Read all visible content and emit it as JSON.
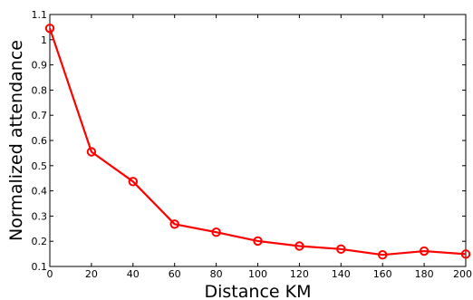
{
  "chart_data": {
    "type": "line",
    "title": "",
    "xlabel": "Distance KM",
    "ylabel": "Normalized attendance",
    "xlim": [
      0,
      200
    ],
    "ylim": [
      0.1,
      1.1
    ],
    "xticks": [
      0,
      20,
      40,
      60,
      80,
      100,
      120,
      140,
      160,
      180,
      200
    ],
    "yticks": [
      0.1,
      0.2,
      0.3,
      0.4,
      0.5,
      0.6,
      0.7,
      0.8,
      0.9,
      1,
      1.1
    ],
    "grid": false,
    "legend": "none",
    "series": [
      {
        "color": "#ff0000",
        "marker": "circle",
        "x": [
          0,
          20,
          40,
          60,
          80,
          100,
          120,
          140,
          160,
          180,
          200
        ],
        "y": [
          1.045,
          0.555,
          0.437,
          0.268,
          0.236,
          0.201,
          0.181,
          0.169,
          0.146,
          0.161,
          0.149
        ]
      }
    ]
  }
}
